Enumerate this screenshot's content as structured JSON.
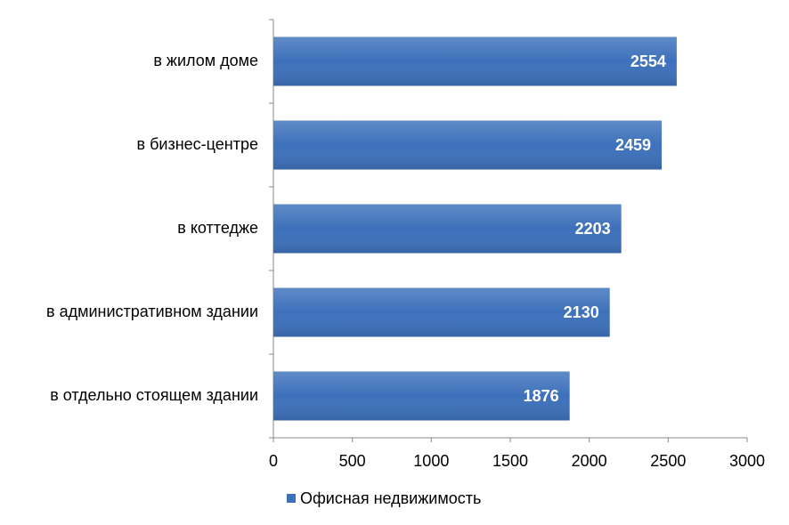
{
  "chart_data": {
    "type": "barh",
    "categories": [
      "в жилом доме",
      "в бизнес-центре",
      "в коттедже",
      "в административном здании",
      "в отдельно стоящем здании"
    ],
    "series": [
      {
        "name": "Офисная недвижимость",
        "color": "#3d71bb",
        "values": [
          2554,
          2459,
          2203,
          2130,
          1876
        ]
      }
    ],
    "xlim": [
      0,
      3000
    ],
    "xticks": [
      0,
      500,
      1000,
      1500,
      2000,
      2500,
      3000
    ],
    "legend": "bottom",
    "grid": false
  }
}
